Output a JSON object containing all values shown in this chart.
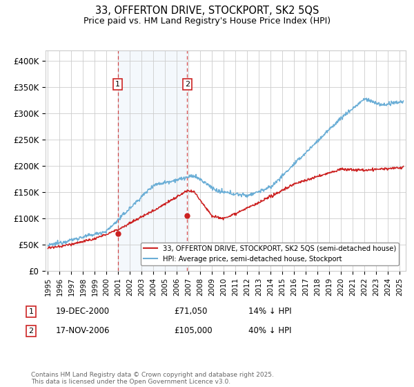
{
  "title": "33, OFFERTON DRIVE, STOCKPORT, SK2 5QS",
  "subtitle": "Price paid vs. HM Land Registry's House Price Index (HPI)",
  "ylabel_ticks": [
    "£0",
    "£50K",
    "£100K",
    "£150K",
    "£200K",
    "£250K",
    "£300K",
    "£350K",
    "£400K"
  ],
  "ytick_values": [
    0,
    50000,
    100000,
    150000,
    200000,
    250000,
    300000,
    350000,
    400000
  ],
  "ylim": [
    0,
    420000
  ],
  "xlim_start": 1994.8,
  "xlim_end": 2025.5,
  "hpi_color": "#6baed6",
  "price_color": "#cc2222",
  "purchase1_x": 2000.96,
  "purchase1_y": 71050,
  "purchase2_x": 2006.88,
  "purchase2_y": 105000,
  "vline1_x": 2000.96,
  "vline2_x": 2006.88,
  "legend_label_price": "33, OFFERTON DRIVE, STOCKPORT, SK2 5QS (semi-detached house)",
  "legend_label_hpi": "HPI: Average price, semi-detached house, Stockport",
  "annotation1_label": "1",
  "annotation1_date": "19-DEC-2000",
  "annotation1_price": "£71,050",
  "annotation1_hpi": "14% ↓ HPI",
  "annotation2_label": "2",
  "annotation2_date": "17-NOV-2006",
  "annotation2_price": "£105,000",
  "annotation2_hpi": "40% ↓ HPI",
  "footer": "Contains HM Land Registry data © Crown copyright and database right 2025.\nThis data is licensed under the Open Government Licence v3.0.",
  "background_color": "#ffffff",
  "grid_color": "#cccccc"
}
